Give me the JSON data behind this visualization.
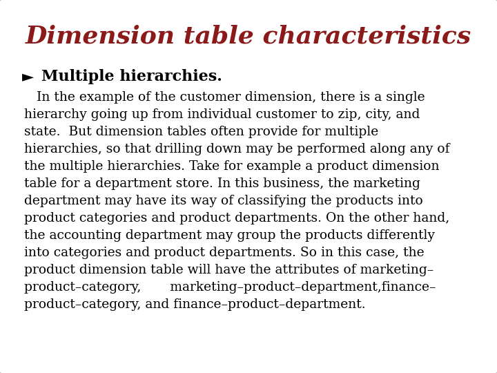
{
  "title": "Dimension table characteristics",
  "title_color": "#8B1A1A",
  "title_fontsize": 26,
  "bullet_symbol": "►",
  "bullet_text": "Multiple hierarchies.",
  "bullet_fontsize": 16,
  "body_lines": [
    "   In the example of the customer dimension, there is a single",
    "hierarchy going up from individual customer to zip, city, and",
    "state.  But dimension tables often provide for multiple",
    "hierarchies, so that drilling down may be performed along any of",
    "the multiple hierarchies. Take for example a product dimension",
    "table for a department store. In this business, the marketing",
    "department may have its way of classifying the products into",
    "product categories and product departments. On the other hand,",
    "the accounting department may group the products differently",
    "into categories and product departments. So in this case, the",
    "product dimension table will have the attributes of marketing–",
    "product–category,       marketing–product–department,finance–",
    "product–category, and finance–product–department."
  ],
  "body_fontsize": 13.5,
  "bg_color": "#FFFFFF",
  "border_color": "#BBBBBB",
  "text_color": "#000000",
  "fig_width": 7.2,
  "fig_height": 5.4
}
